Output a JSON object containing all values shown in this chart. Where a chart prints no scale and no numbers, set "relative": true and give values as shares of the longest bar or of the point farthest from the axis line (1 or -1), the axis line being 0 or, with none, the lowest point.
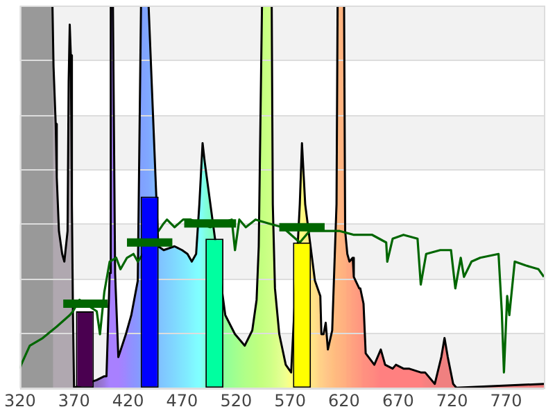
{
  "chart_data": {
    "type": "area",
    "relative": true,
    "xlim": [
      320,
      805
    ],
    "xticks": [
      320,
      370,
      420,
      470,
      520,
      570,
      620,
      670,
      720,
      770
    ],
    "grid": "y",
    "legend": false,
    "series": [
      {
        "color": "#000000",
        "x": [
          320,
          350,
          351,
          353,
          354,
          356,
          359,
          361,
          364,
          365,
          366,
          367,
          368,
          369,
          370,
          391,
          398,
          400,
          403,
          404,
          406,
          408,
          411,
          418,
          423,
          429,
          432,
          439,
          443,
          448,
          453,
          463,
          470,
          475,
          479,
          483,
          486,
          489,
          491,
          496,
          503,
          510,
          519,
          528,
          535,
          539,
          541,
          544,
          553,
          554,
          556,
          560,
          566,
          571,
          579,
          581,
          584,
          593,
          598,
          599,
          601,
          603,
          605,
          609,
          613,
          614,
          620,
          621,
          623,
          625,
          628,
          629,
          634,
          635,
          638,
          640,
          648,
          654,
          658,
          665,
          668,
          675,
          680,
          691,
          695,
          704,
          710,
          713,
          716,
          721,
          724,
          805
        ],
        "values": [
          1,
          1,
          0.84,
          0.69,
          0.55,
          0.41,
          0.35,
          0.33,
          0.41,
          0.8,
          0.95,
          0.87,
          0.48,
          0.19,
          0,
          0.02,
          0.03,
          0.03,
          0.3,
          1,
          1,
          0.3,
          0.08,
          0.14,
          0.19,
          0.28,
          1,
          1,
          null,
          0.37,
          0.36,
          0.37,
          0.36,
          0.35,
          0.33,
          0.35,
          0.48,
          0.64,
          0.59,
          null,
          null,
          0.19,
          0.14,
          0.11,
          0.15,
          0.23,
          0.37,
          1,
          1,
          0.48,
          0.26,
          0.14,
          0.06,
          0.04,
          0.48,
          0.64,
          0.48,
          0.28,
          0.24,
          0.14,
          0.14,
          0.17,
          0.1,
          0.15,
          0.48,
          1,
          1,
          0.41,
          0.35,
          0.33,
          0.34,
          0.29,
          0.26,
          0.26,
          0.22,
          0.09,
          0.06,
          0.1,
          0.06,
          0.05,
          0.06,
          0.05,
          0.05,
          0.04,
          0.04,
          0.01,
          0.08,
          0.13,
          0.08,
          0.01,
          0,
          0.01
        ],
        "colors": [
          "#999999",
          "#999999",
          "#b0a8b0",
          "#b0a8b0",
          "#b0a8b0",
          "#b0a8b0",
          "#b0a8b0",
          "#b0a8b0",
          "#b0a8b0",
          "#b0a8b0",
          "#b0a8b0",
          "#b0a8b0",
          "#b0a8b0",
          "#b0a8b0",
          "#b0a8b0",
          "#9070c0",
          "#9c78e0",
          "#a07cf0",
          "#a880ff",
          "#a880ff",
          "#a880ff",
          "#a880ff",
          "#a880ff",
          "#9c88ff",
          "#9090ff",
          "#8898ff",
          "#80a0ff",
          "#80a8ff",
          "#80b4ff",
          "#80c0ff",
          "#80c8ff",
          "#80d8ff",
          "#80e4ff",
          "#80ecff",
          "#80f4ff",
          "#80fcff",
          "#80ffff",
          "#80fff0",
          "#80ffe0",
          "#80ffc8",
          "#80ffb0",
          "#90ff98",
          "#a0ff90",
          "#b0ff88",
          "#b8ff84",
          "#bcff80",
          "#c0ff80",
          "#c4ff80",
          "#d0ff88",
          "#d4ff88",
          "#d8ff88",
          "#e0ff90",
          "#f0ff90",
          "#ffff80",
          "#ffff80",
          "#ffff80",
          "#fff080",
          "#ffe088",
          "#ffd088",
          "#ffd088",
          "#ffcc88",
          "#ffc888",
          "#ffc488",
          "#ffc080",
          "#ffb880",
          "#ffb880",
          "#ffb080",
          "#ffb080",
          "#ffa880",
          "#ffa880",
          "#ffa080",
          "#ffa080",
          "#ff9880",
          "#ff9880",
          "#ff9080",
          "#ff9080",
          "#ff8880",
          "#ff8080",
          "#ff8080",
          "#ff8080",
          "#ff8080",
          "#ff8080",
          "#ff8080",
          "#ff8080",
          "#f88080",
          "#f08080",
          "#f08080",
          "#f08080",
          "#f08080",
          "#f08080",
          "#f08080",
          "#f08080"
        ]
      },
      {
        "type": "line",
        "color": "#006600",
        "x": [
          320,
          321,
          329,
          341,
          354,
          366,
          369,
          375,
          391,
          394,
          398,
          403,
          409,
          413,
          419,
          425,
          429,
          453,
          456,
          463,
          471,
          478,
          496,
          516,
          519,
          523,
          529,
          538,
          550,
          563,
          579,
          588,
          604,
          616,
          629,
          646,
          659,
          660,
          665,
          675,
          688,
          691,
          696,
          709,
          719,
          723,
          728,
          731,
          738,
          746,
          763,
          766,
          768,
          771,
          773,
          778,
          788,
          800,
          805
        ],
        "values": [
          0.05,
          0.06,
          0.11,
          0.13,
          0.16,
          0.19,
          0.2,
          0.23,
          0.2,
          0.14,
          0.25,
          0.33,
          0.34,
          0.31,
          0.34,
          0.35,
          0.33,
          0.43,
          0.44,
          0.42,
          0.44,
          0.44,
          0.42,
          0.44,
          0.36,
          0.44,
          0.42,
          0.44,
          0.43,
          0.42,
          0.38,
          0.41,
          0.41,
          0.41,
          0.4,
          0.4,
          0.38,
          0.33,
          0.39,
          0.4,
          0.39,
          0.27,
          0.35,
          0.36,
          0.36,
          0.26,
          0.34,
          0.29,
          0.33,
          0.34,
          0.35,
          0.2,
          0.04,
          0.24,
          0.19,
          0.33,
          0.32,
          0.31,
          0.29
        ]
      },
      {
        "type": "bar",
        "x": [
          380,
          440,
          500,
          581
        ],
        "values": [
          0.2,
          0.5,
          0.39,
          0.38
        ],
        "colors": [
          "#4a0050",
          "#0000ff",
          "#00ffa0",
          "#ffff00"
        ]
      },
      {
        "type": "line",
        "color": "#006600",
        "x": [
          360,
          401,
          410,
          419,
          461,
          466,
          472,
          520,
          540,
          560,
          602
        ],
        "values": [
          0.22,
          0.22,
          null,
          0.38,
          0.38,
          null,
          0.43,
          0.43,
          null,
          0.42,
          0.42
        ]
      }
    ]
  }
}
